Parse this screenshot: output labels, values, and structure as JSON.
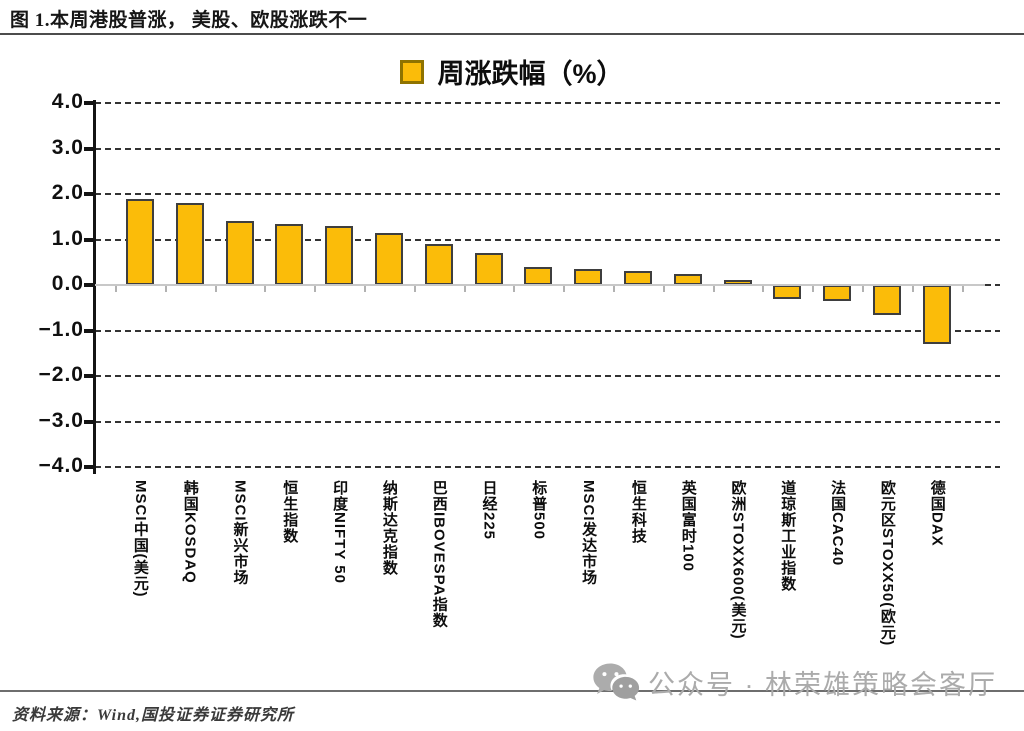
{
  "header": {
    "title": "图 1.本周港股普涨， 美股、欧股涨跌不一"
  },
  "legend": {
    "label": "周涨跌幅（%）",
    "swatch_color": "#FBBC09"
  },
  "chart_data": {
    "type": "bar",
    "title": "周涨跌幅（%）",
    "categories": [
      "MSCI中国(美元)",
      "韩国KOSDAQ",
      "MSCI新兴市场",
      "恒生指数",
      "印度NIFTY 50",
      "纳斯达克指数",
      "巴西IBOVESPA指数",
      "日经225",
      "标普500",
      "MSCI发达市场",
      "恒生科技",
      "英国富时100",
      "欧洲STOXX600(美元)",
      "道琼斯工业指数",
      "法国CAC40",
      "欧元区STOXX50(欧元)",
      "德国DAX"
    ],
    "values": [
      1.9,
      1.8,
      1.4,
      1.35,
      1.3,
      1.15,
      0.9,
      0.7,
      0.4,
      0.35,
      0.3,
      0.25,
      0.1,
      -0.3,
      -0.35,
      -0.65,
      -1.3
    ],
    "ylabel": "",
    "xlabel": "",
    "ylim": [
      -4.0,
      4.0
    ],
    "ytick_step": 1.0,
    "ytick_labels": [
      "4.0",
      "3.0",
      "2.0",
      "1.0",
      "0.0",
      "−1.0",
      "−2.0",
      "−3.0",
      "−4.0"
    ],
    "grid": "horizontal-dashed",
    "legend_position": "top-center",
    "bar_color": "#FBBC09",
    "bar_border_color": "#3E3E3E"
  },
  "footer": {
    "source": "资料来源：Wind,国投证券证券研究所"
  },
  "watermark": {
    "icon": "wechat-icon",
    "text": "公众号 · 林荣雄策略会客厅"
  }
}
